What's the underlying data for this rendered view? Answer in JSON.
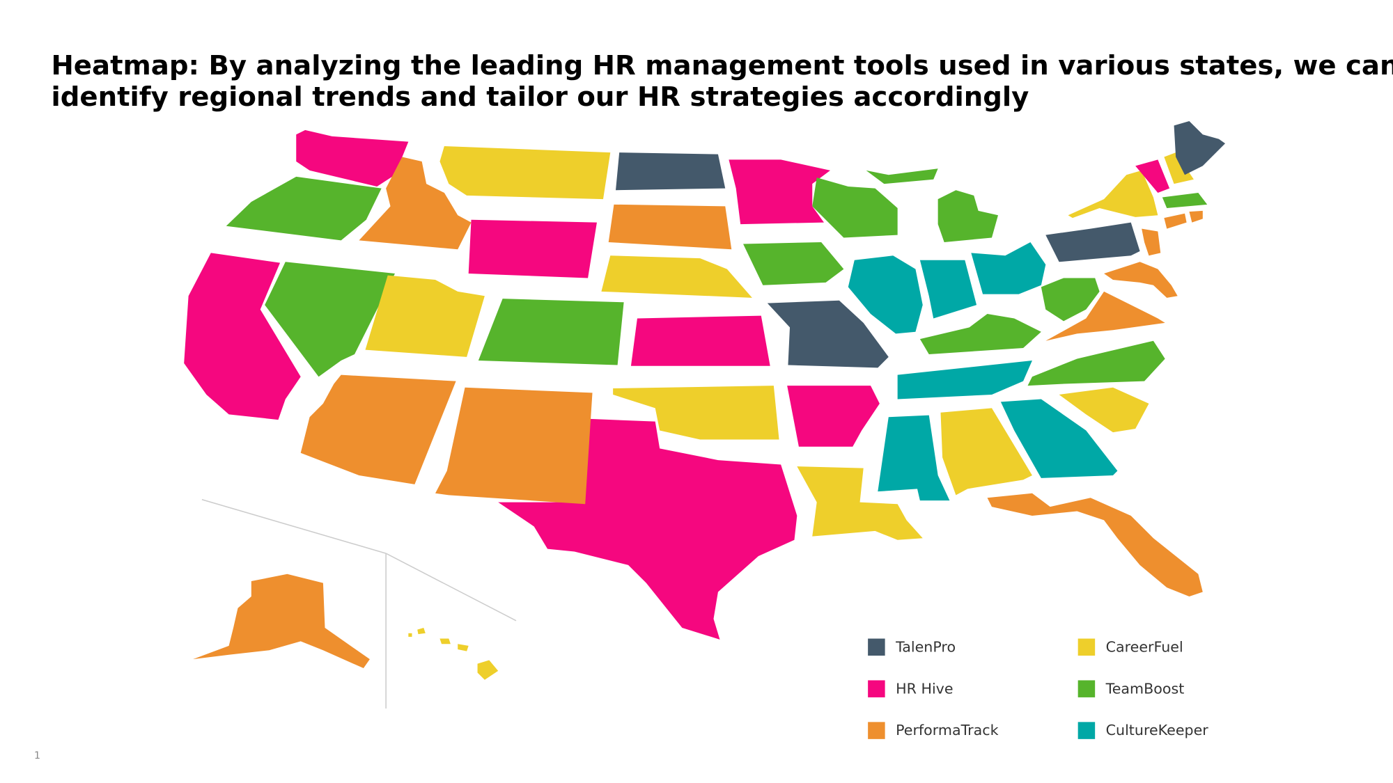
{
  "title_lines": [
    "Heatmap: By analyzing the leading HR management tools used in various states, we can",
    "identify regional trends and tailor our HR strategies accordingly"
  ],
  "legend": [
    {
      "label": "TalenPro",
      "color": "#44596b"
    },
    {
      "label": "HR Hive",
      "color": "#f5077f"
    },
    {
      "label": "PerformaTrack",
      "color": "#ee8f2e"
    },
    {
      "label": "CareerFuel",
      "color": "#eecf2b"
    },
    {
      "label": "TeamBoost",
      "color": "#56b42c"
    },
    {
      "label": "CultureKeeper",
      "color": "#00a8a6"
    }
  ],
  "page_number": "1"
}
